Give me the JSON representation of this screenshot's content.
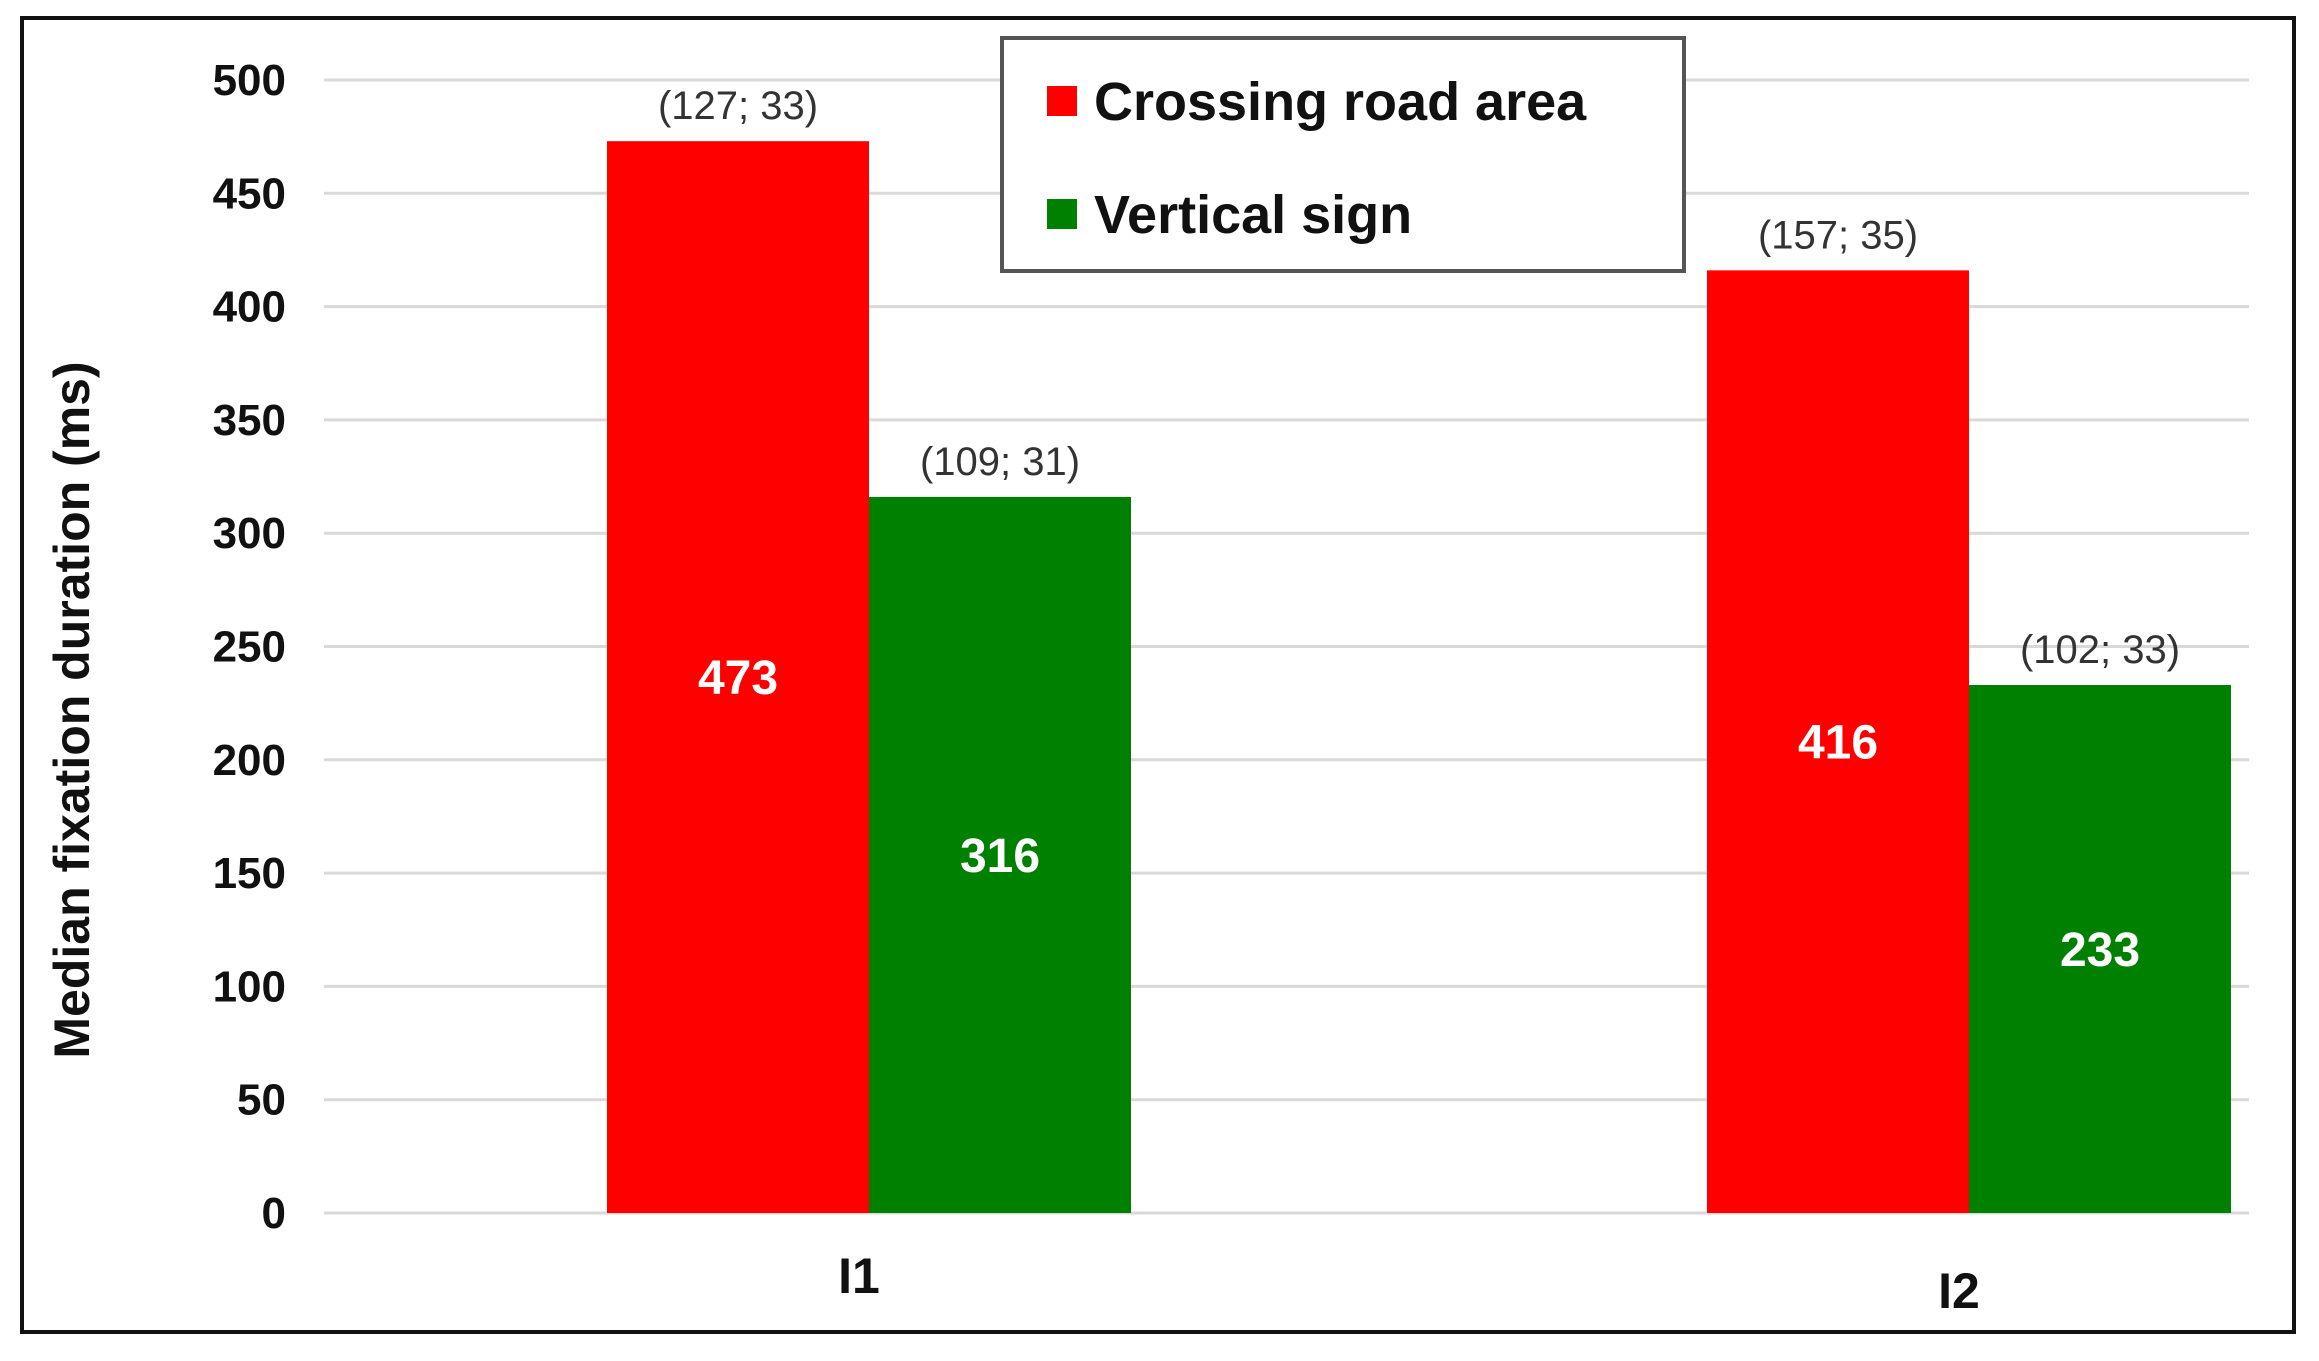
{
  "chart_data": {
    "type": "bar",
    "categories": [
      "I1",
      "I2"
    ],
    "series": [
      {
        "name": "Crossing road area",
        "color": "#ff0000",
        "values": [
          473,
          416
        ],
        "annotations": [
          "(127; 33)",
          "(157; 35)"
        ]
      },
      {
        "name": "Vertical sign",
        "color": "#008000",
        "values": [
          316,
          233
        ],
        "annotations": [
          "(109; 31)",
          "(102; 33)"
        ]
      }
    ],
    "ylabel": "Median fixation duration (ms)",
    "ylim": [
      0,
      500
    ],
    "yticks": [
      0,
      50,
      100,
      150,
      200,
      250,
      300,
      350,
      400,
      450,
      500
    ],
    "grid": true,
    "legend_position": "top-center"
  }
}
